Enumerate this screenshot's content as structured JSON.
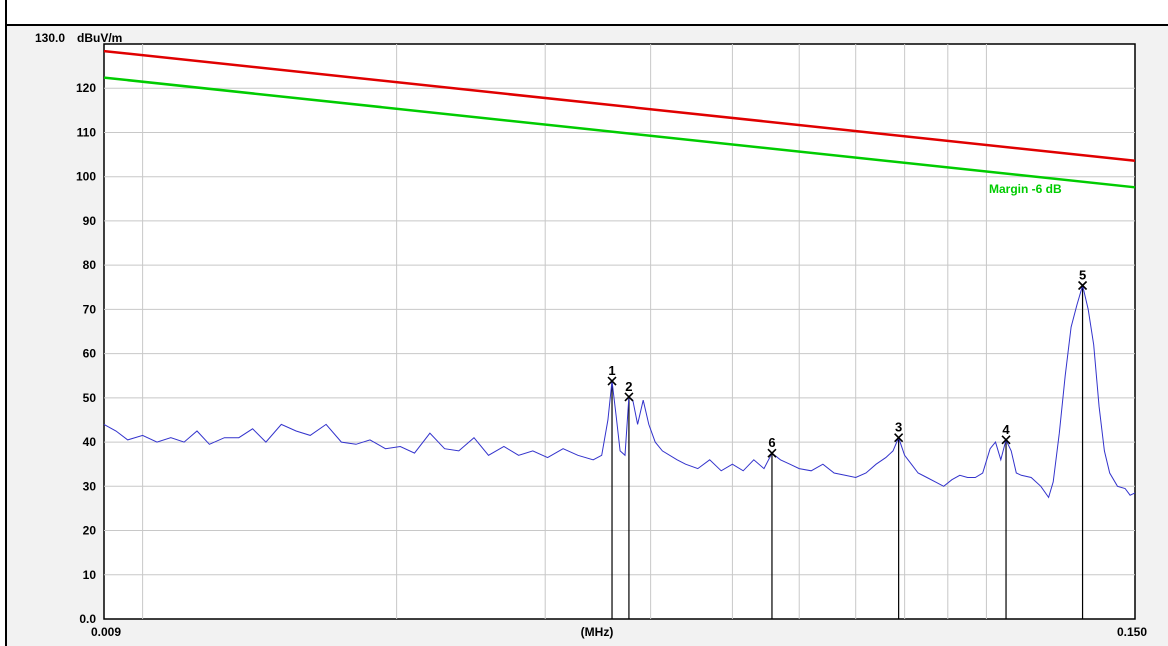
{
  "chart_data": {
    "type": "line",
    "ylabel": "dBuV/m",
    "xlabel": "(MHz)",
    "x_scale": "log",
    "xlim": [
      0.009,
      0.15
    ],
    "ylim": [
      0,
      130
    ],
    "x_tick_labels": [
      {
        "value": 0.009,
        "label": "0.009"
      },
      {
        "value": 0.15,
        "label": "0.150"
      }
    ],
    "y_ticks": [
      {
        "value": 130,
        "label": "130.0"
      },
      {
        "value": 120,
        "label": "120"
      },
      {
        "value": 110,
        "label": "110"
      },
      {
        "value": 100,
        "label": "100"
      },
      {
        "value": 90,
        "label": "90"
      },
      {
        "value": 80,
        "label": "80"
      },
      {
        "value": 70,
        "label": "70"
      },
      {
        "value": 60,
        "label": "60"
      },
      {
        "value": 50,
        "label": "50"
      },
      {
        "value": 40,
        "label": "40"
      },
      {
        "value": 30,
        "label": "30"
      },
      {
        "value": 20,
        "label": "20"
      },
      {
        "value": 10,
        "label": "10"
      },
      {
        "value": 0,
        "label": "0.0"
      }
    ],
    "grid": true,
    "limit_lines": [
      {
        "color": "#e00000",
        "start": [
          0.009,
          128.4
        ],
        "end": [
          0.15,
          103.6
        ]
      },
      {
        "label": "Margin -6 dB",
        "color": "#00cc00",
        "start": [
          0.009,
          122.4
        ],
        "end": [
          0.15,
          97.6
        ]
      }
    ],
    "series": [
      {
        "color": "#3333cc",
        "points": [
          [
            0.009,
            44.0
          ],
          [
            0.0093,
            42.5
          ],
          [
            0.0096,
            40.5
          ],
          [
            0.01,
            41.5
          ],
          [
            0.0104,
            40.0
          ],
          [
            0.0108,
            41.0
          ],
          [
            0.0112,
            40.0
          ],
          [
            0.0116,
            42.5
          ],
          [
            0.012,
            39.5
          ],
          [
            0.0125,
            41.0
          ],
          [
            0.013,
            41.0
          ],
          [
            0.0135,
            43.0
          ],
          [
            0.014,
            40.0
          ],
          [
            0.0146,
            44.0
          ],
          [
            0.0152,
            42.5
          ],
          [
            0.0158,
            41.5
          ],
          [
            0.0165,
            44.0
          ],
          [
            0.0172,
            40.0
          ],
          [
            0.0179,
            39.5
          ],
          [
            0.0186,
            40.5
          ],
          [
            0.0194,
            38.5
          ],
          [
            0.0202,
            39.0
          ],
          [
            0.021,
            37.5
          ],
          [
            0.0219,
            42.0
          ],
          [
            0.0228,
            38.5
          ],
          [
            0.0237,
            38.0
          ],
          [
            0.0247,
            41.0
          ],
          [
            0.0257,
            37.0
          ],
          [
            0.0268,
            39.0
          ],
          [
            0.0279,
            37.0
          ],
          [
            0.029,
            38.0
          ],
          [
            0.0302,
            36.5
          ],
          [
            0.0315,
            38.5
          ],
          [
            0.0328,
            37.0
          ],
          [
            0.0342,
            36.0
          ],
          [
            0.035,
            37.0
          ],
          [
            0.0356,
            45.0
          ],
          [
            0.036,
            53.8
          ],
          [
            0.0364,
            46.0
          ],
          [
            0.0368,
            38.0
          ],
          [
            0.0373,
            37.0
          ],
          [
            0.0377,
            50.2
          ],
          [
            0.0381,
            49.5
          ],
          [
            0.0386,
            44.0
          ],
          [
            0.0392,
            49.5
          ],
          [
            0.0398,
            44.0
          ],
          [
            0.0405,
            40.0
          ],
          [
            0.0413,
            38.0
          ],
          [
            0.043,
            36.0
          ],
          [
            0.044,
            35.0
          ],
          [
            0.0455,
            34.0
          ],
          [
            0.047,
            36.0
          ],
          [
            0.0485,
            33.5
          ],
          [
            0.05,
            35.0
          ],
          [
            0.0515,
            33.5
          ],
          [
            0.053,
            36.0
          ],
          [
            0.0545,
            34.0
          ],
          [
            0.0557,
            37.5
          ],
          [
            0.057,
            36.0
          ],
          [
            0.0585,
            35.0
          ],
          [
            0.06,
            34.0
          ],
          [
            0.062,
            33.5
          ],
          [
            0.064,
            35.0
          ],
          [
            0.066,
            33.0
          ],
          [
            0.068,
            32.5
          ],
          [
            0.07,
            32.0
          ],
          [
            0.072,
            33.0
          ],
          [
            0.074,
            35.0
          ],
          [
            0.076,
            36.5
          ],
          [
            0.0775,
            38.0
          ],
          [
            0.0787,
            41.0
          ],
          [
            0.08,
            37.0
          ],
          [
            0.0815,
            35.0
          ],
          [
            0.083,
            33.0
          ],
          [
            0.085,
            32.0
          ],
          [
            0.087,
            31.0
          ],
          [
            0.089,
            30.0
          ],
          [
            0.091,
            31.5
          ],
          [
            0.093,
            32.5
          ],
          [
            0.095,
            32.0
          ],
          [
            0.097,
            32.0
          ],
          [
            0.099,
            33.0
          ],
          [
            0.101,
            38.5
          ],
          [
            0.1025,
            40.0
          ],
          [
            0.104,
            36.0
          ],
          [
            0.1055,
            40.5
          ],
          [
            0.107,
            38.0
          ],
          [
            0.1085,
            33.0
          ],
          [
            0.11,
            32.5
          ],
          [
            0.113,
            32.0
          ],
          [
            0.116,
            30.0
          ],
          [
            0.1185,
            27.5
          ],
          [
            0.12,
            31.0
          ],
          [
            0.122,
            42.0
          ],
          [
            0.124,
            55.0
          ],
          [
            0.126,
            66.0
          ],
          [
            0.128,
            71.0
          ],
          [
            0.13,
            75.4
          ],
          [
            0.132,
            70.0
          ],
          [
            0.134,
            62.0
          ],
          [
            0.136,
            48.0
          ],
          [
            0.138,
            38.0
          ],
          [
            0.14,
            33.0
          ],
          [
            0.143,
            30.0
          ],
          [
            0.146,
            29.5
          ],
          [
            0.148,
            28.0
          ],
          [
            0.15,
            28.5
          ]
        ]
      }
    ],
    "markers": [
      {
        "label": "1",
        "x": 0.036,
        "y": 53.8
      },
      {
        "label": "2",
        "x": 0.0377,
        "y": 50.2
      },
      {
        "label": "6",
        "x": 0.0557,
        "y": 37.5
      },
      {
        "label": "3",
        "x": 0.0787,
        "y": 41.0
      },
      {
        "label": "4",
        "x": 0.1055,
        "y": 40.5
      },
      {
        "label": "5",
        "x": 0.13,
        "y": 75.4
      }
    ]
  }
}
